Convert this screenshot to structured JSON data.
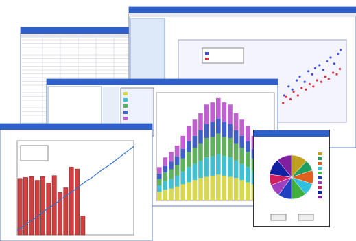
{
  "scatter_chart": {
    "type": "scatter",
    "xlim": [
      0,
      100
    ],
    "ylim": [
      0,
      100
    ],
    "series": [
      {
        "color": "#4050e0",
        "x": [
          5,
          12,
          18,
          25,
          30,
          38,
          44,
          50,
          55,
          62,
          68,
          74,
          80,
          86,
          92,
          96
        ],
        "y": [
          30,
          42,
          38,
          50,
          55,
          48,
          62,
          58,
          66,
          70,
          64,
          75,
          80,
          72,
          85,
          90
        ]
      },
      {
        "color": "#e03040",
        "x": [
          3,
          8,
          15,
          20,
          27,
          33,
          40,
          46,
          52,
          58,
          65,
          71,
          77,
          84,
          90,
          95
        ],
        "y": [
          20,
          28,
          25,
          35,
          30,
          40,
          38,
          45,
          42,
          50,
          48,
          55,
          52,
          60,
          58,
          65
        ]
      }
    ]
  },
  "stacked_chart": {
    "type": "stacked-bar",
    "ylim": [
      0,
      100
    ],
    "series": [
      {
        "color": "#d8d850",
        "values": [
          8,
          10,
          11,
          13,
          15,
          17,
          19,
          21,
          22,
          23,
          24,
          23,
          22,
          21,
          19,
          17,
          15,
          13,
          11,
          10
        ]
      },
      {
        "color": "#40c0d0",
        "values": [
          6,
          8,
          9,
          10,
          12,
          14,
          15,
          16,
          18,
          18,
          19,
          18,
          18,
          16,
          15,
          14,
          12,
          10,
          9,
          8
        ]
      },
      {
        "color": "#60b060",
        "values": [
          6,
          8,
          9,
          10,
          12,
          14,
          15,
          16,
          18,
          18,
          19,
          18,
          18,
          16,
          15,
          14,
          12,
          10,
          9,
          8
        ]
      },
      {
        "color": "#4060c8",
        "values": [
          5,
          6,
          7,
          8,
          9,
          10,
          11,
          12,
          13,
          14,
          14,
          14,
          13,
          12,
          11,
          10,
          9,
          8,
          7,
          6
        ]
      },
      {
        "color": "#c060d0",
        "values": [
          6,
          8,
          9,
          10,
          12,
          14,
          15,
          16,
          18,
          18,
          19,
          18,
          18,
          16,
          15,
          14,
          12,
          10,
          9,
          8
        ]
      }
    ]
  },
  "bar_chart": {
    "type": "bar",
    "ylim": [
      0,
      100
    ],
    "color": "#d04040",
    "values": [
      60,
      61,
      62,
      58,
      62,
      55,
      63,
      45,
      50,
      72,
      70,
      20
    ],
    "line_color": "#3070d0",
    "line_values": [
      5,
      9,
      14,
      18,
      23,
      28,
      32,
      37,
      42,
      46,
      51,
      56,
      60,
      65,
      70,
      74,
      79,
      84,
      89,
      94
    ]
  },
  "pie_chart": {
    "type": "pie",
    "values": [
      12,
      8,
      10,
      9,
      11,
      10,
      9,
      8,
      12,
      11
    ],
    "colors": [
      "#c0a020",
      "#20a060",
      "#e06020",
      "#30c0e0",
      "#40b040",
      "#2040c0",
      "#a040c0",
      "#d02060",
      "#1020a0",
      "#8020a0"
    ]
  }
}
